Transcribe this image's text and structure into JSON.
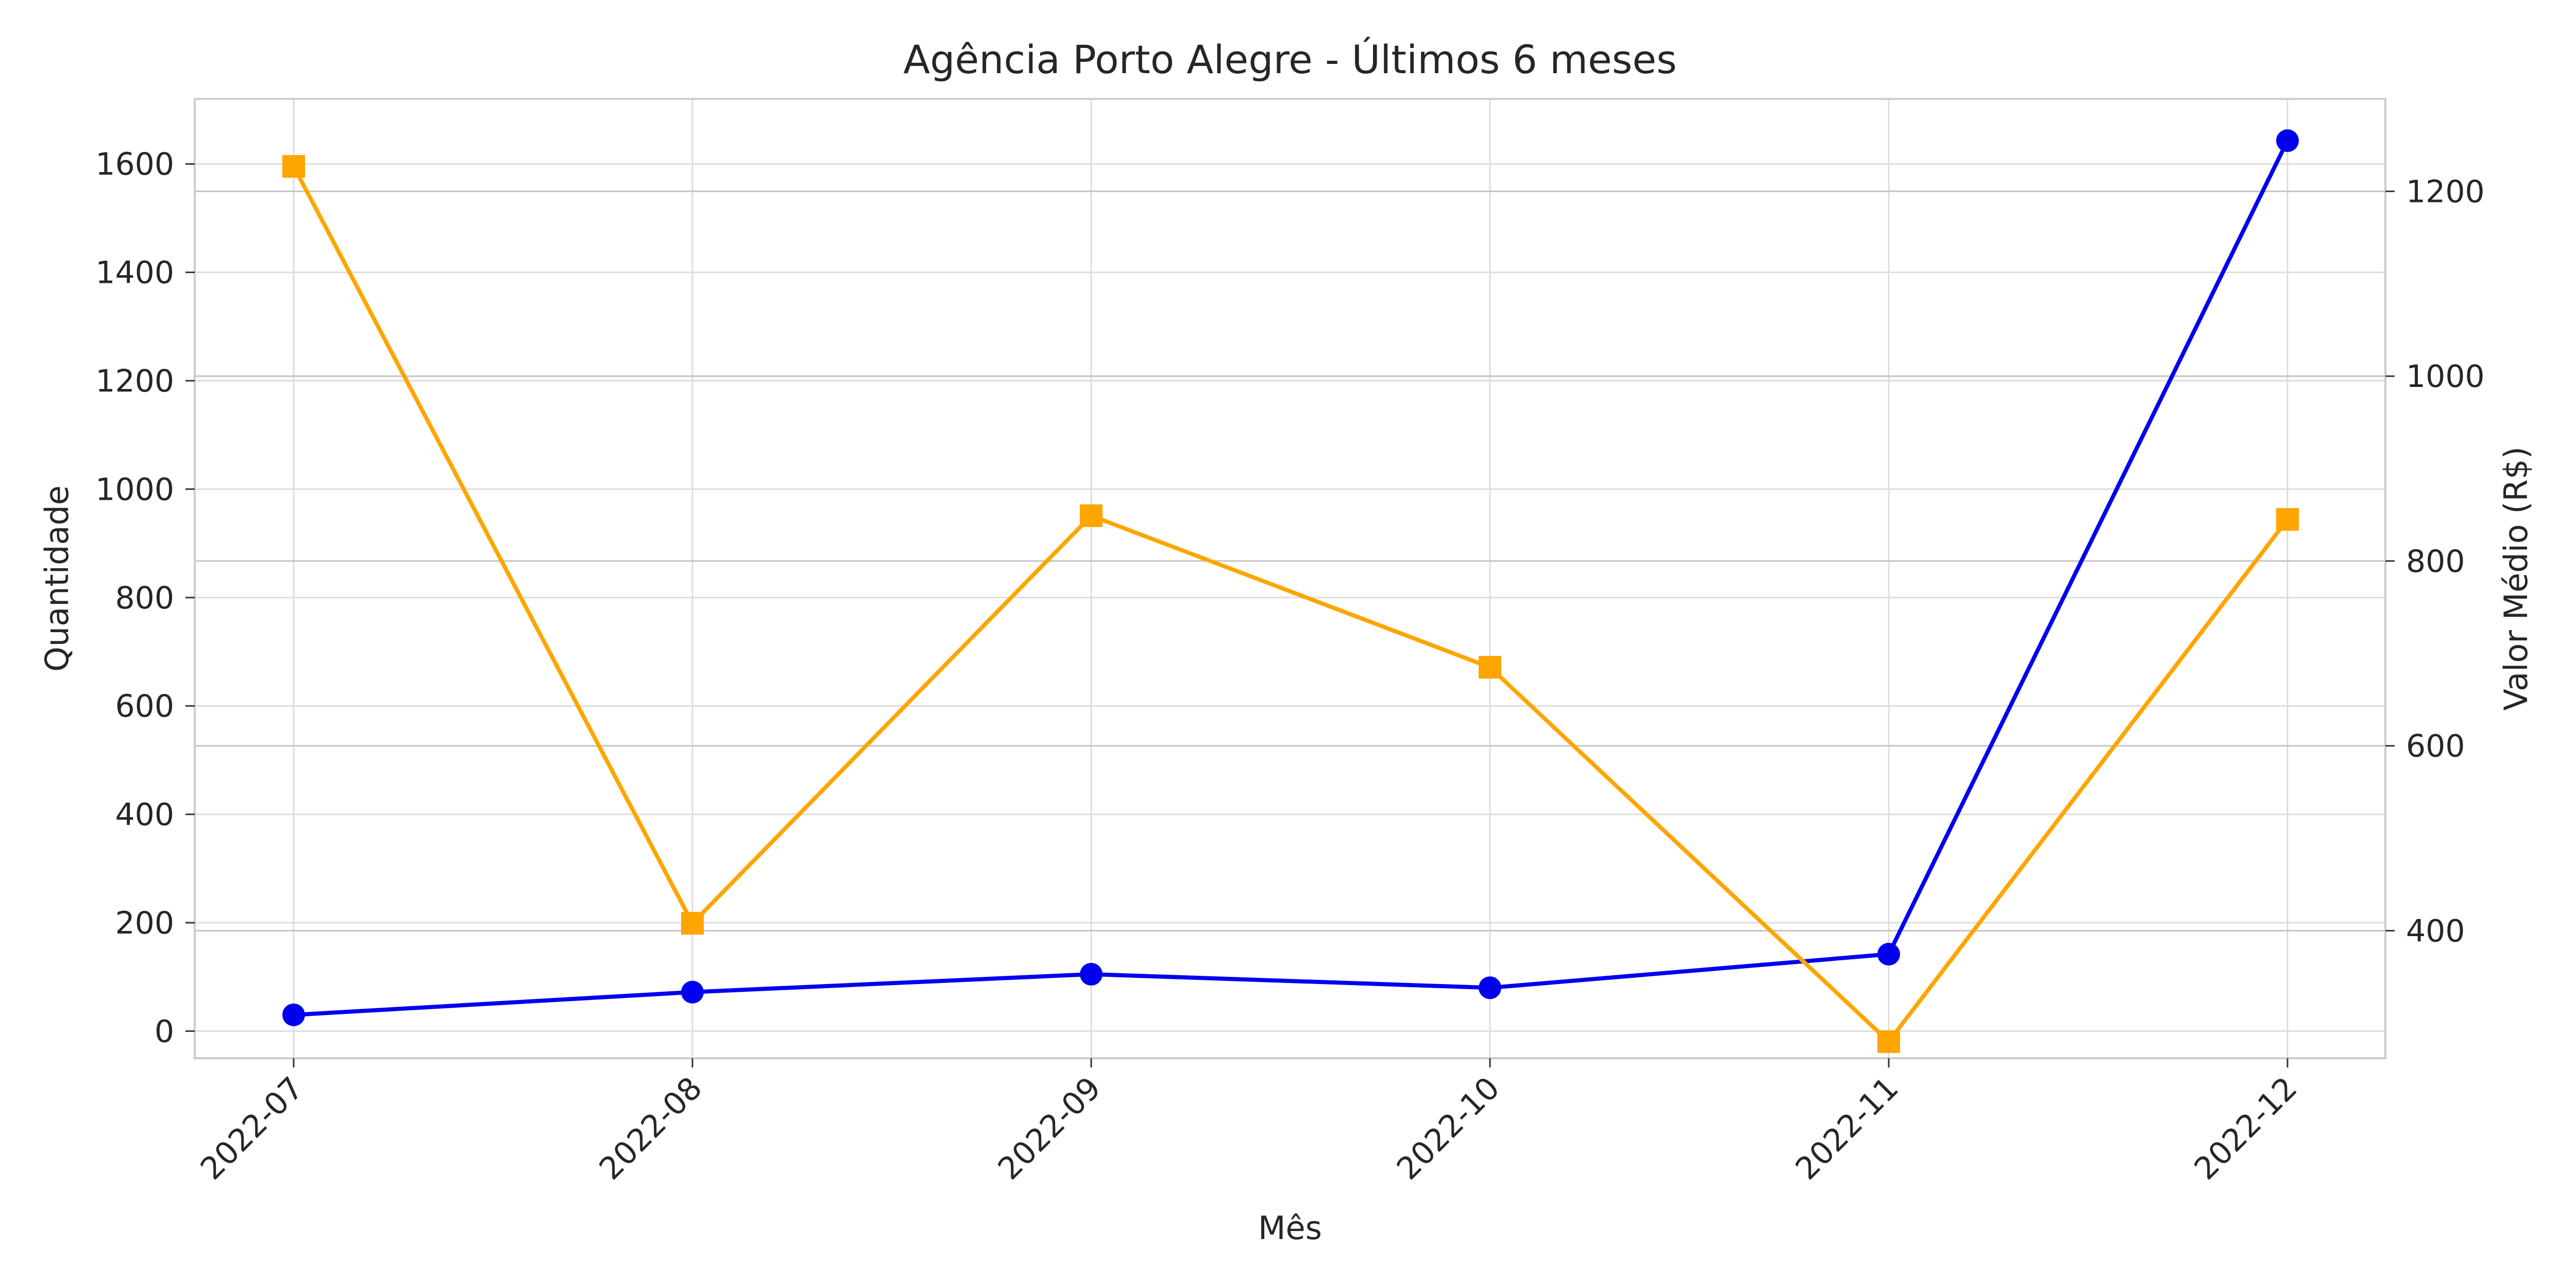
{
  "chart_data": {
    "type": "line",
    "title": "Agência Porto Alegre - Últimos 6 meses",
    "xlabel": "Mês",
    "ylabel_left": "Quantidade",
    "ylabel_right": "Valor Médio (R$)",
    "categories": [
      "2022-07",
      "2022-08",
      "2022-09",
      "2022-10",
      "2022-11",
      "2022-12"
    ],
    "y_left": {
      "lim": [
        -50,
        1720
      ],
      "ticks": [
        0,
        200,
        400,
        600,
        800,
        1000,
        1200,
        1400,
        1600
      ]
    },
    "y_right": {
      "lim": [
        262,
        1300
      ],
      "ticks": [
        400,
        600,
        800,
        1000,
        1200
      ]
    },
    "series": [
      {
        "axis": "left",
        "color": "#0000ee",
        "marker": "circle",
        "values": [
          30,
          72,
          105,
          80,
          142,
          1643
        ]
      },
      {
        "axis": "right",
        "color": "#ffa500",
        "marker": "square",
        "values": [
          1227,
          408,
          849,
          685,
          280,
          845
        ]
      }
    ],
    "grid": true,
    "tick_label_color_left": "#262626",
    "tick_label_color_right": "#262626",
    "ylabel_right_color": "#ffa500"
  }
}
